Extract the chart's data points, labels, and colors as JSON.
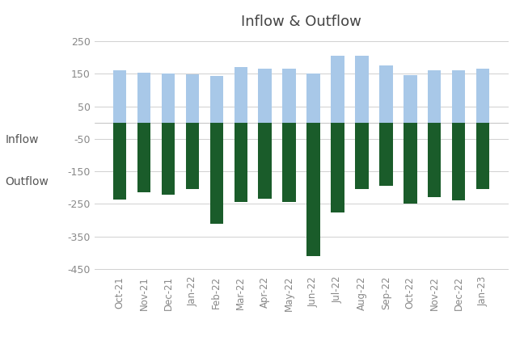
{
  "title": "Inflow & Outflow",
  "categories": [
    "Oct-21",
    "Nov-21",
    "Dec-21",
    "Jan-22",
    "Feb-22",
    "Mar-22",
    "Apr-22",
    "May-22",
    "Jun-22",
    "Jul-22",
    "Aug-22",
    "Sep-22",
    "Oct-22",
    "Nov-22",
    "Dec-22",
    "Jan-23"
  ],
  "inflow": [
    162,
    153,
    151,
    149,
    145,
    170,
    165,
    165,
    151,
    205,
    205,
    175,
    147,
    161,
    161,
    165
  ],
  "outflow": [
    -237,
    -215,
    -222,
    -205,
    -310,
    -243,
    -235,
    -245,
    -410,
    -275,
    -205,
    -195,
    -248,
    -230,
    -240,
    -205
  ],
  "inflow_color": "#a8c8e8",
  "outflow_color": "#1a5c2a",
  "title_fontsize": 13,
  "ylabel_values": [
    250,
    150,
    50,
    -50,
    -150,
    -250,
    -350,
    -450
  ],
  "ylim": [
    -460,
    270
  ],
  "legend_inflow": "Inflow",
  "legend_outflow": "Outflow",
  "background_color": "#ffffff",
  "grid_color": "#d0d0d0",
  "bar_width": 0.55,
  "tick_color": "#888888",
  "label_fontsize": 8.5,
  "ytick_fontsize": 9
}
